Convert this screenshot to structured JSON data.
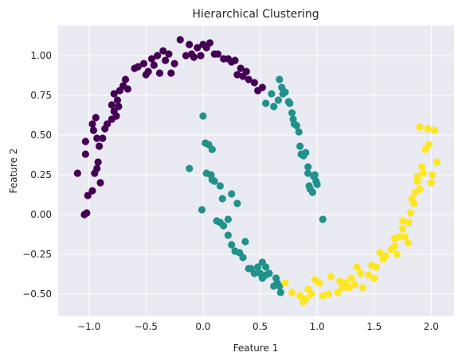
{
  "chart_data": {
    "type": "scatter",
    "title": "Hierarchical Clustering",
    "xlabel": "Feature 1",
    "ylabel": "Feature 2",
    "xlim": [
      -1.27,
      2.2
    ],
    "ylim": [
      -0.64,
      1.19
    ],
    "xticks": [
      -1.0,
      -0.5,
      0.0,
      0.5,
      1.0,
      1.5,
      2.0
    ],
    "xtick_labels": [
      "−1.0",
      "−0.5",
      "0.0",
      "0.5",
      "1.0",
      "1.5",
      "2.0"
    ],
    "yticks": [
      -0.5,
      -0.25,
      0.0,
      0.25,
      0.5,
      0.75,
      1.0
    ],
    "ytick_labels": [
      "−0.50",
      "−0.25",
      "0.00",
      "0.25",
      "0.50",
      "0.75",
      "1.00"
    ],
    "grid": true,
    "background": "#eaeaf2",
    "colors": [
      "#440154",
      "#21918c",
      "#fde725"
    ],
    "series": [
      {
        "cluster": 0,
        "x": [
          -1.1,
          -1.04,
          -1.03,
          -1.02,
          -1.03,
          -1.01,
          -0.97,
          -0.95,
          -0.93,
          -0.92,
          -0.91,
          -0.93,
          -0.96,
          -0.97,
          -0.94,
          -0.9,
          -0.88,
          -0.86,
          -0.84,
          -0.8,
          -0.78,
          -0.76,
          -0.74,
          -0.75,
          -0.8,
          -0.78,
          -0.73,
          -0.7,
          -0.68,
          -0.66,
          -0.6,
          -0.57,
          -0.52,
          -0.5,
          -0.48,
          -0.45,
          -0.43,
          -0.4,
          -0.38,
          -0.35,
          -0.33,
          -0.3,
          -0.28,
          -0.25,
          -0.2,
          -0.15,
          -0.12,
          -0.1,
          -0.08,
          -0.05,
          -0.02,
          0.0,
          0.03,
          0.06,
          0.1,
          0.13,
          0.18,
          0.22,
          0.25,
          0.28,
          0.3,
          0.33,
          0.35,
          0.38,
          0.4,
          0.45,
          0.48,
          0.52
        ],
        "y": [
          0.26,
          0.0,
          0.38,
          0.01,
          0.46,
          0.12,
          0.15,
          0.26,
          0.29,
          0.33,
          0.43,
          0.48,
          0.53,
          0.57,
          0.61,
          0.2,
          0.48,
          0.54,
          0.57,
          0.6,
          0.65,
          0.62,
          0.68,
          0.72,
          0.69,
          0.76,
          0.78,
          0.81,
          0.85,
          0.79,
          0.92,
          0.93,
          0.95,
          0.88,
          0.9,
          0.98,
          0.94,
          1.0,
          0.89,
          1.03,
          0.97,
          1.01,
          0.89,
          0.95,
          1.1,
          1.0,
          1.07,
          1.01,
          0.99,
          1.05,
          1.0,
          1.07,
          1.05,
          1.08,
          1.01,
          1.01,
          0.98,
          0.98,
          0.96,
          0.97,
          0.88,
          0.92,
          0.87,
          0.9,
          0.85,
          0.83,
          0.78,
          0.8
        ]
      },
      {
        "cluster": 1,
        "x": [
          -0.12,
          -0.01,
          0.0,
          0.02,
          0.05,
          0.03,
          0.07,
          0.08,
          0.08,
          0.1,
          0.12,
          0.15,
          0.15,
          0.17,
          0.18,
          0.22,
          0.22,
          0.25,
          0.25,
          0.28,
          0.3,
          0.32,
          0.35,
          0.37,
          0.4,
          0.42,
          0.45,
          0.48,
          0.5,
          0.52,
          0.52,
          0.55,
          0.55,
          0.58,
          0.62,
          0.65,
          0.67,
          0.68,
          0.67,
          0.69,
          0.7,
          0.72,
          0.75,
          0.76,
          0.78,
          0.79,
          0.8,
          0.82,
          0.84,
          0.85,
          0.88,
          0.86,
          0.9,
          0.92,
          0.92,
          0.93,
          0.94,
          0.96,
          0.97,
          0.98,
          0.99,
          1.0,
          1.05,
          0.6,
          0.55,
          0.62,
          0.66,
          0.64
        ],
        "y": [
          0.29,
          0.03,
          0.62,
          0.45,
          0.44,
          0.26,
          0.25,
          0.22,
          0.41,
          0.21,
          -0.04,
          -0.05,
          0.18,
          0.1,
          -0.07,
          -0.03,
          -0.13,
          0.13,
          -0.19,
          -0.23,
          0.07,
          -0.24,
          -0.27,
          -0.17,
          -0.34,
          -0.34,
          -0.37,
          -0.33,
          -0.37,
          -0.3,
          -0.4,
          -0.38,
          -0.33,
          -0.37,
          -0.45,
          -0.43,
          -0.45,
          -0.49,
          0.85,
          0.8,
          0.76,
          0.77,
          0.71,
          0.7,
          0.64,
          0.6,
          0.57,
          0.56,
          0.52,
          0.43,
          0.37,
          0.38,
          0.39,
          0.3,
          0.26,
          0.18,
          0.16,
          0.14,
          0.24,
          0.25,
          0.21,
          0.19,
          -0.03,
          0.76,
          0.7,
          0.68,
          0.72,
          -0.4
        ]
      },
      {
        "cluster": 2,
        "x": [
          0.72,
          0.78,
          0.85,
          0.88,
          0.9,
          0.92,
          0.95,
          0.98,
          1.02,
          1.05,
          1.1,
          1.12,
          1.18,
          1.2,
          1.22,
          1.25,
          1.28,
          1.3,
          1.33,
          1.35,
          1.38,
          1.4,
          1.45,
          1.48,
          1.5,
          1.52,
          1.55,
          1.58,
          1.6,
          1.65,
          1.68,
          1.7,
          1.72,
          1.75,
          1.77,
          1.8,
          1.82,
          1.83,
          1.85,
          1.86,
          1.88,
          1.88,
          1.9,
          1.9,
          1.92,
          1.93,
          1.95,
          1.97,
          1.98,
          2.0,
          2.01,
          2.03,
          2.05,
          1.8,
          1.75,
          1.68
        ],
        "y": [
          -0.43,
          -0.49,
          -0.51,
          -0.55,
          -0.53,
          -0.47,
          -0.5,
          -0.41,
          -0.43,
          -0.51,
          -0.5,
          -0.39,
          -0.49,
          -0.42,
          -0.46,
          -0.43,
          -0.46,
          -0.4,
          -0.44,
          -0.33,
          -0.37,
          -0.46,
          -0.38,
          -0.32,
          -0.4,
          -0.33,
          -0.24,
          -0.28,
          -0.26,
          -0.22,
          -0.2,
          -0.25,
          -0.14,
          -0.09,
          -0.14,
          -0.05,
          0.01,
          0.1,
          0.07,
          0.14,
          0.21,
          0.24,
          0.16,
          0.55,
          0.3,
          0.26,
          0.41,
          0.54,
          0.44,
          0.2,
          0.25,
          0.53,
          0.33,
          -0.18,
          -0.04,
          -0.15
        ]
      }
    ]
  }
}
